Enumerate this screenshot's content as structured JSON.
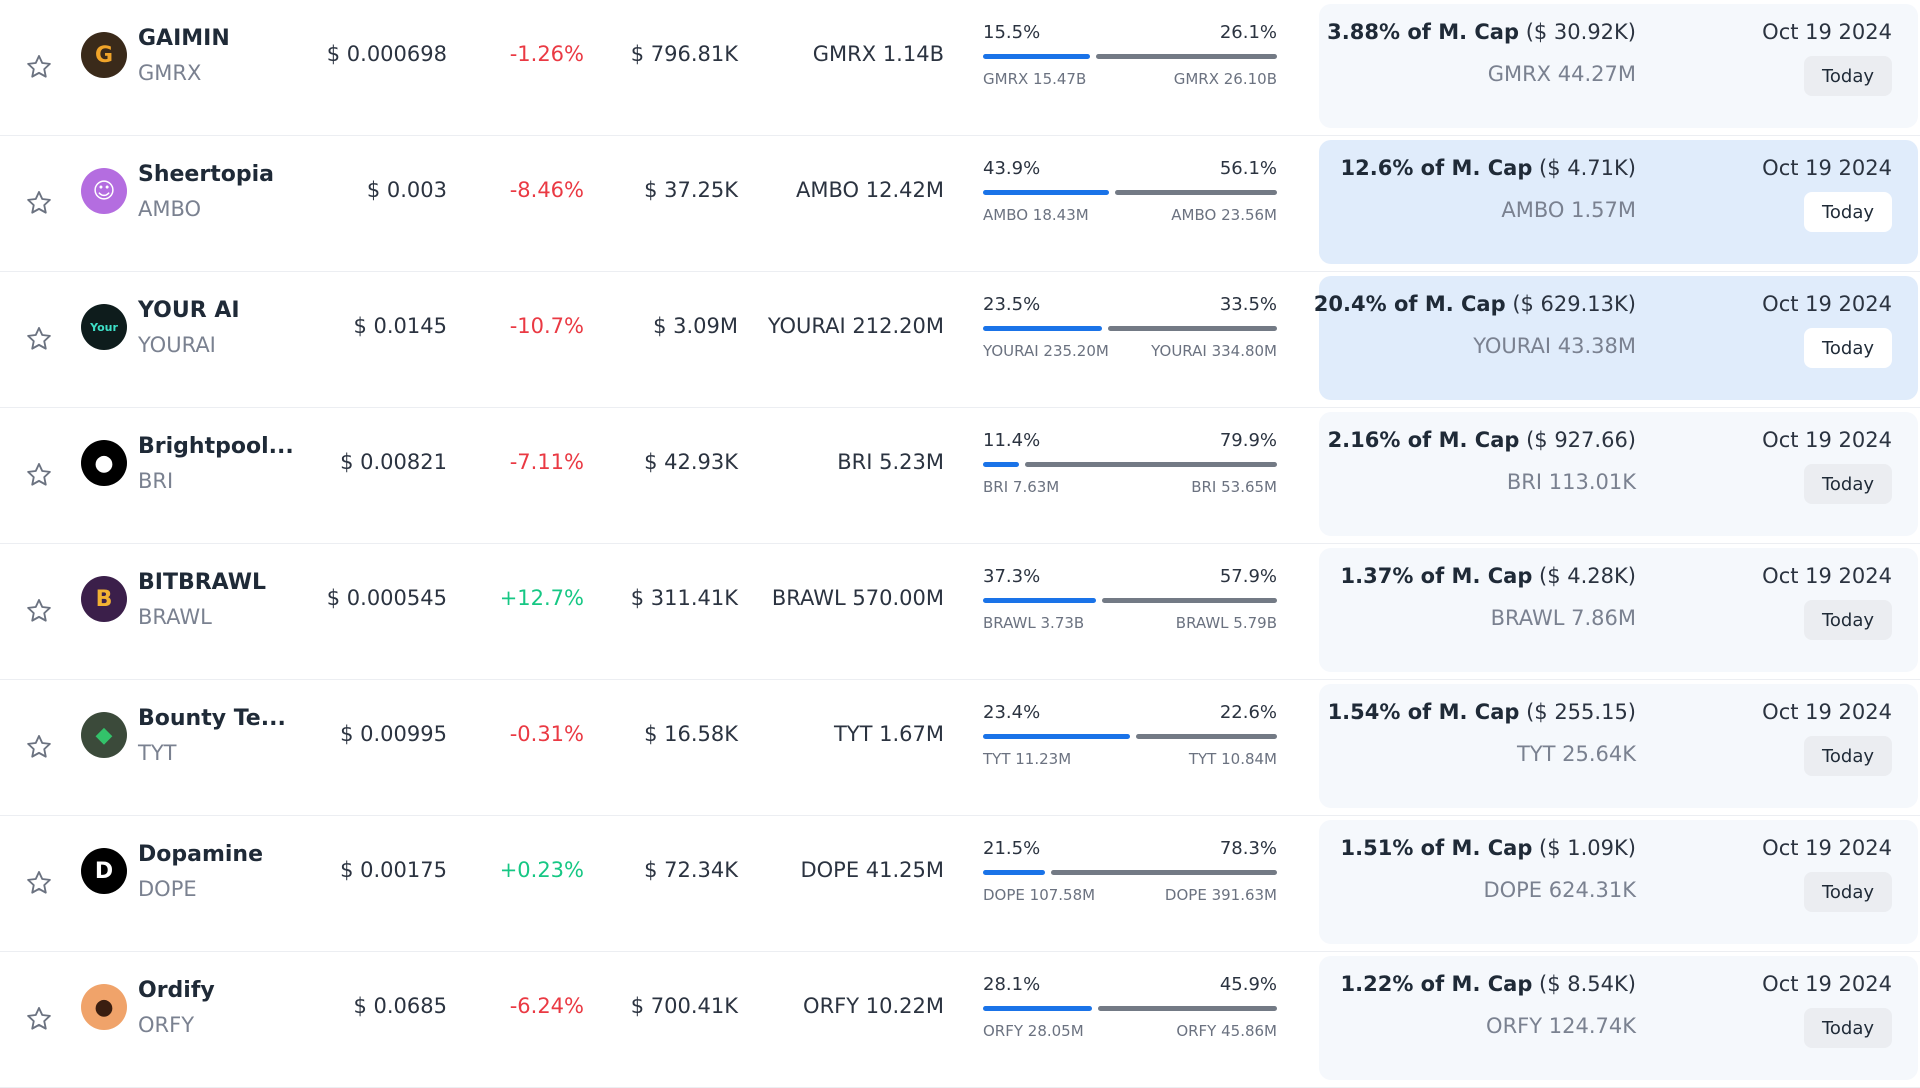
{
  "colors": {
    "negative": "#ea3943",
    "positive": "#16c784",
    "bar_locked": "#1a73e8",
    "bar_unlocked": "#737a85",
    "highlight_panel": "#e0ecfb",
    "panel": "#f5f8fc"
  },
  "icons": {
    "favorite": "star-outline-icon"
  },
  "rows": [
    {
      "name": "GAIMIN",
      "symbol": "GMRX",
      "logo_text": "G",
      "logo_bg": "#3a2a1a",
      "logo_fg": "#f0a429",
      "price": "$ 0.000698",
      "change": "-1.26%",
      "change_dir": "neg",
      "volume": "$ 796.81K",
      "supply": "GMRX 1.14B",
      "alloc_left_pct": "15.5%",
      "alloc_right_pct": "26.1%",
      "alloc_left_fraction": 0.373,
      "alloc_right_fraction": 0.627,
      "alloc_left_amt": "GMRX 15.47B",
      "alloc_right_amt": "GMRX 26.10B",
      "mcap_pct": "3.88% of M. Cap",
      "mcap_usd": "($ 30.92K)",
      "unlock_amt": "GMRX 44.27M",
      "date": "Oct 19 2024",
      "today": "Today",
      "highlight": false
    },
    {
      "name": "Sheertopia",
      "symbol": "AMBO",
      "logo_text": "☺",
      "logo_bg": "#b46de0",
      "logo_fg": "#ffffff",
      "price": "$ 0.003",
      "change": "-8.46%",
      "change_dir": "neg",
      "volume": "$ 37.25K",
      "supply": "AMBO 12.42M",
      "alloc_left_pct": "43.9%",
      "alloc_right_pct": "56.1%",
      "alloc_left_fraction": 0.439,
      "alloc_right_fraction": 0.561,
      "alloc_left_amt": "AMBO 18.43M",
      "alloc_right_amt": "AMBO 23.56M",
      "mcap_pct": "12.6% of M. Cap",
      "mcap_usd": "($ 4.71K)",
      "unlock_amt": "AMBO 1.57M",
      "date": "Oct 19 2024",
      "today": "Today",
      "highlight": true
    },
    {
      "name": "YOUR AI",
      "symbol": "YOURAI",
      "logo_text": "Your",
      "logo_bg": "#0e1c1c",
      "logo_fg": "#3ee0c8",
      "price": "$ 0.0145",
      "change": "-10.7%",
      "change_dir": "neg",
      "volume": "$ 3.09M",
      "supply": "YOURAI 212.20M",
      "alloc_left_pct": "23.5%",
      "alloc_right_pct": "33.5%",
      "alloc_left_fraction": 0.412,
      "alloc_right_fraction": 0.588,
      "alloc_left_amt": "YOURAI 235.20M",
      "alloc_right_amt": "YOURAI 334.80M",
      "mcap_pct": "20.4% of M. Cap",
      "mcap_usd": "($ 629.13K)",
      "unlock_amt": "YOURAI 43.38M",
      "date": "Oct 19 2024",
      "today": "Today",
      "highlight": true
    },
    {
      "name": "Brightpool...",
      "symbol": "BRI",
      "logo_text": "●",
      "logo_bg": "#000000",
      "logo_fg": "#ffffff",
      "price": "$ 0.00821",
      "change": "-7.11%",
      "change_dir": "neg",
      "volume": "$ 42.93K",
      "supply": "BRI 5.23M",
      "alloc_left_pct": "11.4%",
      "alloc_right_pct": "79.9%",
      "alloc_left_fraction": 0.125,
      "alloc_right_fraction": 0.875,
      "alloc_left_amt": "BRI 7.63M",
      "alloc_right_amt": "BRI 53.65M",
      "mcap_pct": "2.16% of M. Cap",
      "mcap_usd": "($ 927.66)",
      "unlock_amt": "BRI 113.01K",
      "date": "Oct 19 2024",
      "today": "Today",
      "highlight": false
    },
    {
      "name": "BITBRAWL",
      "symbol": "BRAWL",
      "logo_text": "B",
      "logo_bg": "#3b1f4a",
      "logo_fg": "#f2b233",
      "price": "$ 0.000545",
      "change": "+12.7%",
      "change_dir": "pos",
      "volume": "$ 311.41K",
      "supply": "BRAWL 570.00M",
      "alloc_left_pct": "37.3%",
      "alloc_right_pct": "57.9%",
      "alloc_left_fraction": 0.392,
      "alloc_right_fraction": 0.608,
      "alloc_left_amt": "BRAWL 3.73B",
      "alloc_right_amt": "BRAWL 5.79B",
      "mcap_pct": "1.37% of M. Cap",
      "mcap_usd": "($ 4.28K)",
      "unlock_amt": "BRAWL 7.86M",
      "date": "Oct 19 2024",
      "today": "Today",
      "highlight": false
    },
    {
      "name": "Bounty Te...",
      "symbol": "TYT",
      "logo_text": "◆",
      "logo_bg": "#3b4a3a",
      "logo_fg": "#33c26a",
      "price": "$ 0.00995",
      "change": "-0.31%",
      "change_dir": "neg",
      "volume": "$ 16.58K",
      "supply": "TYT 1.67M",
      "alloc_left_pct": "23.4%",
      "alloc_right_pct": "22.6%",
      "alloc_left_fraction": 0.509,
      "alloc_right_fraction": 0.491,
      "alloc_left_amt": "TYT 11.23M",
      "alloc_right_amt": "TYT 10.84M",
      "mcap_pct": "1.54% of M. Cap",
      "mcap_usd": "($ 255.15)",
      "unlock_amt": "TYT 25.64K",
      "date": "Oct 19 2024",
      "today": "Today",
      "highlight": false
    },
    {
      "name": "Dopamine",
      "symbol": "DOPE",
      "logo_text": "D",
      "logo_bg": "#000000",
      "logo_fg": "#ffffff",
      "price": "$ 0.00175",
      "change": "+0.23%",
      "change_dir": "pos",
      "volume": "$ 72.34K",
      "supply": "DOPE 41.25M",
      "alloc_left_pct": "21.5%",
      "alloc_right_pct": "78.3%",
      "alloc_left_fraction": 0.216,
      "alloc_right_fraction": 0.784,
      "alloc_left_amt": "DOPE 107.58M",
      "alloc_right_amt": "DOPE 391.63M",
      "mcap_pct": "1.51% of M. Cap",
      "mcap_usd": "($ 1.09K)",
      "unlock_amt": "DOPE 624.31K",
      "date": "Oct 19 2024",
      "today": "Today",
      "highlight": false
    },
    {
      "name": "Ordify",
      "symbol": "ORFY",
      "logo_text": "●",
      "logo_bg": "#f0a36a",
      "logo_fg": "#3a1e10",
      "price": "$ 0.0685",
      "change": "-6.24%",
      "change_dir": "neg",
      "volume": "$ 700.41K",
      "supply": "ORFY 10.22M",
      "alloc_left_pct": "28.1%",
      "alloc_right_pct": "45.9%",
      "alloc_left_fraction": 0.38,
      "alloc_right_fraction": 0.62,
      "alloc_left_amt": "ORFY 28.05M",
      "alloc_right_amt": "ORFY 45.86M",
      "mcap_pct": "1.22% of M. Cap",
      "mcap_usd": "($ 8.54K)",
      "unlock_amt": "ORFY 124.74K",
      "date": "Oct 19 2024",
      "today": "Today",
      "highlight": false
    }
  ]
}
